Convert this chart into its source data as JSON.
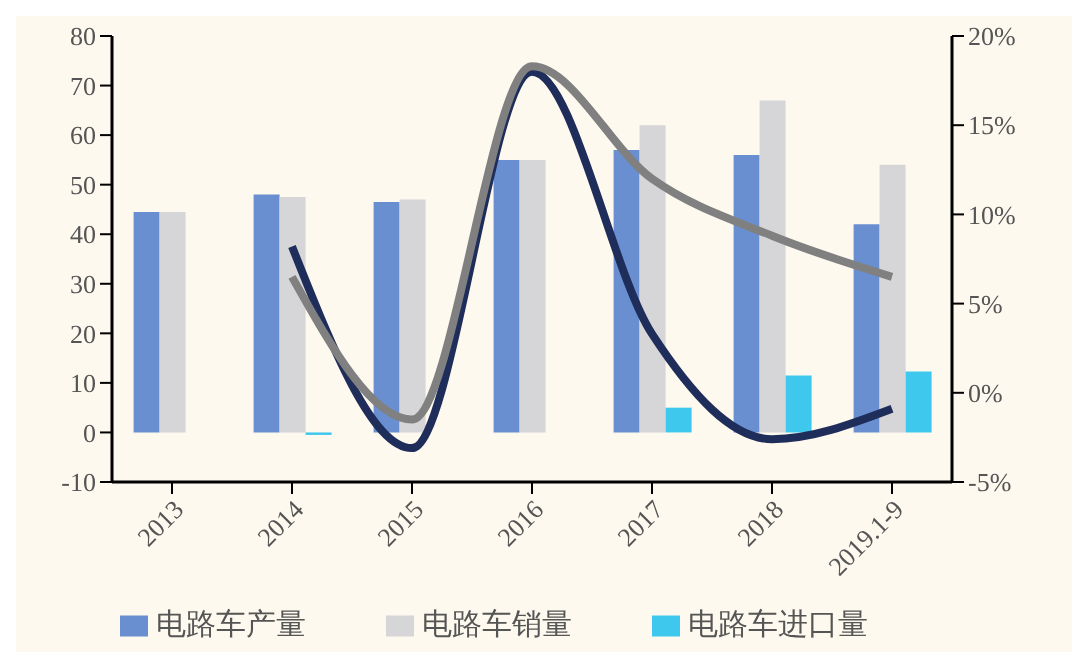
{
  "chart_data": {
    "type": "bar",
    "categories": [
      "2013",
      "2014",
      "2015",
      "2016",
      "2017",
      "2018",
      "2019.1-9"
    ],
    "series": [
      {
        "name": "电路车产量",
        "color": "#6a8fd0",
        "values": [
          44.5,
          48,
          46.5,
          55,
          57,
          56,
          42
        ]
      },
      {
        "name": "电路车销量",
        "color": "#d6d6d8",
        "values": [
          44.5,
          47.5,
          47,
          55,
          62,
          67,
          54
        ]
      },
      {
        "name": "电路车进口量",
        "color": "#3ec8ee",
        "values": [
          null,
          -0.5,
          null,
          null,
          5,
          11.5,
          12.3
        ]
      },
      {
        "type": "line",
        "axis": "y2",
        "color": "#1f2d5a",
        "values": [
          null,
          8.2,
          -3.1,
          18,
          3.3,
          -2.6,
          -0.9
        ]
      },
      {
        "type": "line",
        "axis": "y2",
        "color": "#808080",
        "values": [
          null,
          6.5,
          -1.5,
          18.3,
          12,
          8.8,
          6.5
        ]
      }
    ],
    "ylim": [
      -10,
      80
    ],
    "yticks": [
      -10,
      0,
      10,
      20,
      30,
      40,
      50,
      60,
      70,
      80
    ],
    "y2lim": [
      -5,
      20
    ],
    "y2ticks": [
      {
        "value": -5,
        "label": "-5%"
      },
      {
        "value": 0,
        "label": "0%"
      },
      {
        "value": 5,
        "label": "5%"
      },
      {
        "value": 10,
        "label": "10%"
      },
      {
        "value": 15,
        "label": "15%"
      },
      {
        "value": 20,
        "label": "20%"
      }
    ],
    "grid": false,
    "legend": "bottom",
    "marker": "none"
  }
}
